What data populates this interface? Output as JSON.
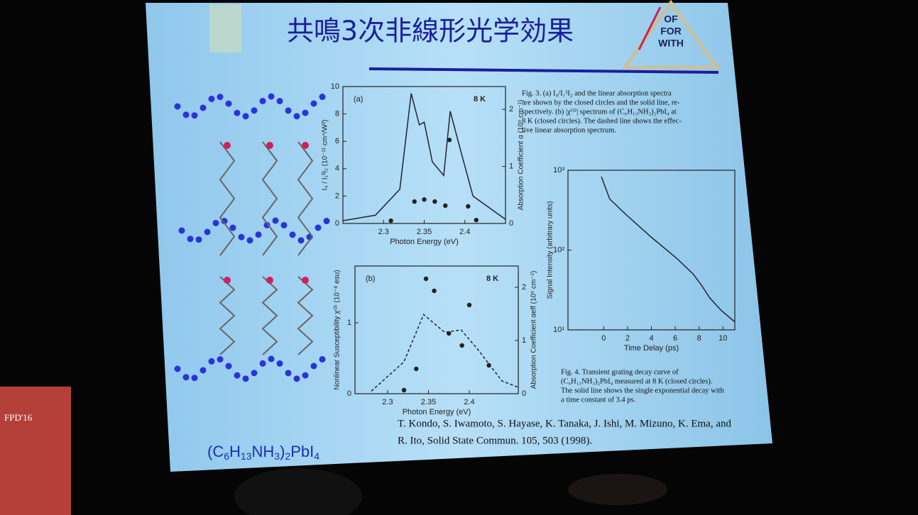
{
  "slide": {
    "title": "共鳴3次非線形光学効果",
    "logo": [
      "OF",
      "FOR",
      "WITH"
    ],
    "formula": [
      "(C",
      "6",
      "H",
      "13",
      "NH",
      "3",
      ")",
      "2",
      "PbI",
      "4"
    ],
    "reference": [
      "T. Kondo, S. Iwamoto, S. Hayase, K. Tanaka, J. Ishi, M. Mizuno, K. Ema, and",
      "R. Ito, Solid State Commun. 105, 503 (1998)."
    ]
  },
  "figures": [
    {
      "panel": "(a)",
      "temp": "8 K",
      "xlabel": "Photon Energy (eV)",
      "ylabel": "I₄ / I₁²I₂ (10⁻¹¹ cm⁴/W²)",
      "y2label": "Absorption Coefficient α (10⁵ cm⁻¹)",
      "xlim": [
        2.25,
        2.45
      ],
      "xticks": [
        2.3,
        2.35,
        2.4
      ],
      "ylim": [
        0,
        10
      ],
      "yticks": [
        0,
        2,
        4,
        6,
        8,
        10
      ],
      "y2lim": [
        0,
        2.4
      ],
      "y2ticks": [
        0,
        1,
        2
      ],
      "points": {
        "x": [
          2.309,
          2.338,
          2.35,
          2.363,
          2.376,
          2.381,
          2.404,
          2.414
        ],
        "y": [
          0.2,
          1.6,
          1.75,
          1.6,
          1.3,
          6.1,
          1.25,
          0.25
        ]
      }
    },
    {
      "panel": "(b)",
      "temp": "8 K",
      "xlabel": "Photon Energy (eV)",
      "ylabel": "Nonlinear Susceptibility χ⁽³⁾ (10⁻⁸ esu)",
      "y2label": "Absorption Coefficient αeff (10⁵ cm⁻¹)",
      "xlim": [
        2.26,
        2.46
      ],
      "xticks": [
        2.3,
        2.35,
        2.4
      ],
      "ylim": [
        0,
        1.8
      ],
      "yticks": [
        0,
        1
      ],
      "y2lim": [
        0,
        2.4
      ],
      "y2ticks": [
        0,
        1,
        2
      ],
      "points": {
        "x": [
          2.32,
          2.335,
          2.347,
          2.357,
          2.375,
          2.391,
          2.4,
          2.424
        ],
        "y": [
          0.05,
          0.35,
          1.62,
          1.45,
          0.85,
          0.68,
          1.25,
          0.4
        ]
      }
    },
    {
      "panel": null,
      "temp": null,
      "xlabel": "Time Delay (ps)",
      "ylabel": "Signal Intensity (arbitrary units)",
      "y2label": null,
      "xlim": [
        -3,
        11
      ],
      "xticks": [
        0,
        2,
        4,
        6,
        8,
        10
      ],
      "ylim": [
        10,
        1000
      ],
      "log": true,
      "yticks": [
        {
          "value": 10,
          "label": "10¹"
        },
        {
          "value": 100,
          "label": "10²"
        },
        {
          "value": 1000,
          "label": "10³"
        }
      ],
      "y2lim": null,
      "y2ticks": null,
      "points": null
    }
  ],
  "captions": [
    [
      "Fig. 3. (a) I₄/I₁²I₂ and the linear absorption spectra",
      "are shown by the closed circles and the solid line, re-",
      "spectively. (b) |χ⁽³⁾| spectrum of (C₆H₁₃NH₃)₂PbI₄ at",
      "8 K (closed circles). The dashed line shows the effec-",
      "tive linear absorption spectrum."
    ],
    [
      "Fig. 4. Transient grating decay curve of",
      "(C₆H₁₃NH₃)₂PbI₄ measured at 8 K (closed circles).",
      "The solid line shows the single exponential decay with",
      "a time constant of 3.4 ps."
    ]
  ],
  "podium": "FPD'16"
}
